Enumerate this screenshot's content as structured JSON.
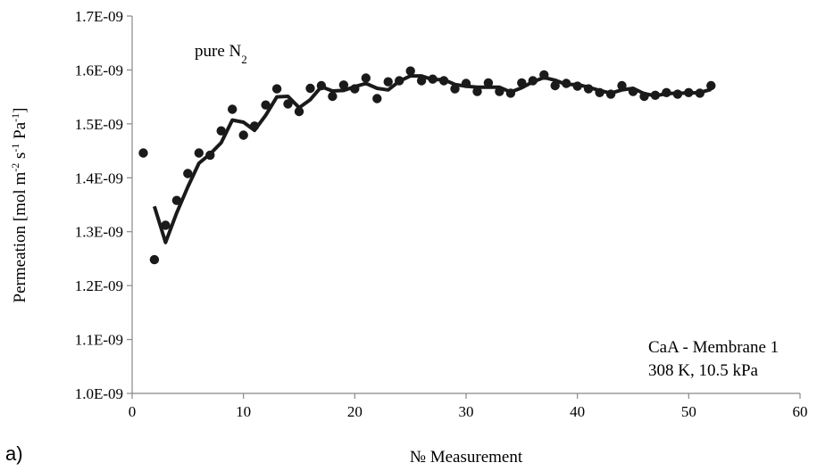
{
  "panel_label": "a)",
  "chart_data": {
    "type": "scatter",
    "title": "",
    "xlabel": "№ Measurement",
    "ylabel": {
      "main": "Permeation [mol m",
      "sup1": "-2",
      "mid1": " s",
      "sup2": "-1",
      "mid2": " Pa",
      "sup3": "-1",
      "end": "]"
    },
    "xlim": [
      0,
      60
    ],
    "ylim": [
      1e-09,
      1.7e-09
    ],
    "x_ticks": [
      0,
      10,
      20,
      30,
      40,
      50,
      60
    ],
    "y_ticks": [
      1e-09,
      1.1e-09,
      1.2e-09,
      1.3e-09,
      1.4e-09,
      1.5e-09,
      1.6e-09,
      1.7e-09
    ],
    "x_tick_labels": [
      "0",
      "10",
      "20",
      "30",
      "40",
      "50",
      "60"
    ],
    "y_tick_labels": [
      "1.0E-09",
      "1.1E-09",
      "1.2E-09",
      "1.3E-09",
      "1.4E-09",
      "1.5E-09",
      "1.6E-09",
      "1.7E-09"
    ],
    "grid": false,
    "annotations": {
      "gas": {
        "text": "pure N",
        "sub": "2"
      },
      "membrane": "CaA - Membrane 1",
      "conditions": "308 K, 10.5 kPa"
    },
    "points": {
      "x": [
        1,
        2,
        3,
        4,
        5,
        6,
        7,
        8,
        9,
        10,
        11,
        12,
        13,
        14,
        15,
        16,
        17,
        18,
        19,
        20,
        21,
        22,
        23,
        24,
        25,
        26,
        27,
        28,
        29,
        30,
        31,
        32,
        33,
        34,
        35,
        36,
        37,
        38,
        39,
        40,
        41,
        42,
        43,
        44,
        45,
        46,
        47,
        48,
        49,
        50,
        51,
        52
      ],
      "y": [
        1.446e-09,
        1.248e-09,
        1.312e-09,
        1.358e-09,
        1.408e-09,
        1.446e-09,
        1.442e-09,
        1.487e-09,
        1.527e-09,
        1.479e-09,
        1.496e-09,
        1.535e-09,
        1.565e-09,
        1.537e-09,
        1.523e-09,
        1.566e-09,
        1.571e-09,
        1.551e-09,
        1.572e-09,
        1.565e-09,
        1.585e-09,
        1.547e-09,
        1.578e-09,
        1.58e-09,
        1.598e-09,
        1.58e-09,
        1.583e-09,
        1.58e-09,
        1.565e-09,
        1.575e-09,
        1.56e-09,
        1.576e-09,
        1.56e-09,
        1.557e-09,
        1.576e-09,
        1.58e-09,
        1.591e-09,
        1.571e-09,
        1.575e-09,
        1.57e-09,
        1.565e-09,
        1.558e-09,
        1.555e-09,
        1.571e-09,
        1.56e-09,
        1.551e-09,
        1.553e-09,
        1.558e-09,
        1.555e-09,
        1.558e-09,
        1.557e-09,
        1.571e-09
      ]
    },
    "moving_average": {
      "x": [
        2,
        3,
        4,
        5,
        6,
        7,
        8,
        9,
        10,
        11,
        12,
        13,
        14,
        15,
        16,
        17,
        18,
        19,
        20,
        21,
        22,
        23,
        24,
        25,
        26,
        27,
        28,
        29,
        30,
        31,
        32,
        33,
        34,
        35,
        36,
        37,
        38,
        39,
        40,
        41,
        42,
        43,
        44,
        45,
        46,
        47,
        48,
        49,
        50,
        51,
        52
      ],
      "y": [
        1.347e-09,
        1.28e-09,
        1.335e-09,
        1.383e-09,
        1.427e-09,
        1.444e-09,
        1.465e-09,
        1.507e-09,
        1.503e-09,
        1.488e-09,
        1.516e-09,
        1.55e-09,
        1.551e-09,
        1.53e-09,
        1.545e-09,
        1.569e-09,
        1.561e-09,
        1.562e-09,
        1.569e-09,
        1.575e-09,
        1.566e-09,
        1.563e-09,
        1.579e-09,
        1.589e-09,
        1.589e-09,
        1.582e-09,
        1.582e-09,
        1.573e-09,
        1.57e-09,
        1.568e-09,
        1.568e-09,
        1.568e-09,
        1.559e-09,
        1.567e-09,
        1.578e-09,
        1.586e-09,
        1.581e-09,
        1.573e-09,
        1.573e-09,
        1.568e-09,
        1.562e-09,
        1.557e-09,
        1.563e-09,
        1.566e-09,
        1.556e-09,
        1.552e-09,
        1.556e-09,
        1.557e-09,
        1.557e-09,
        1.558e-09,
        1.564e-09
      ]
    },
    "colors": {
      "points": "#1a1a1a",
      "line": "#1a1a1a",
      "axis": "#888888"
    }
  }
}
